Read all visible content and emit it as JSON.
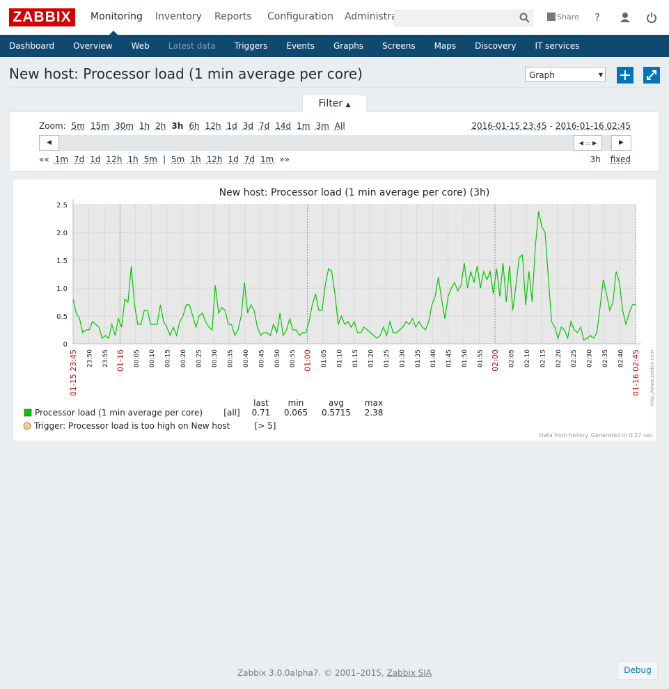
{
  "header": {
    "logo": "ZABBIX",
    "nav": [
      "Monitoring",
      "Inventory",
      "Reports",
      "Configuration",
      "Administrat"
    ],
    "share": "Share",
    "help": "?"
  },
  "subnav": [
    "Dashboard",
    "Overview",
    "Web",
    "Latest data",
    "Triggers",
    "Events",
    "Graphs",
    "Screens",
    "Maps",
    "Discovery",
    "IT services"
  ],
  "page": {
    "title": "New host: Processor load (1 min average per core)",
    "view": "Graph"
  },
  "filter": {
    "tab": "Filter",
    "zoom_label": "Zoom:",
    "zoom": [
      "5m",
      "15m",
      "30m",
      "1h",
      "2h",
      "3h",
      "6h",
      "12h",
      "1d",
      "3d",
      "7d",
      "14d",
      "1m",
      "3m",
      "All"
    ],
    "period_from": "2016-01-15 23:45",
    "separator": "-",
    "period_to": "2016-01-16 02:45",
    "nav_left": [
      "««",
      "1m",
      "7d",
      "1d",
      "12h",
      "1h",
      "5m"
    ],
    "divider": "|",
    "nav_right": [
      "5m",
      "1h",
      "12h",
      "1d",
      "7d",
      "1m",
      "»»"
    ],
    "period": "3h",
    "fixed": "fixed"
  },
  "graph": {
    "type": "line",
    "title": "New host: Processor load (1 min average per core) (3h)",
    "x_labels": [
      "01-15 23:45",
      "23:50",
      "23:55",
      "01-16",
      "00:05",
      "00:10",
      "00:15",
      "00:20",
      "00:25",
      "00:30",
      "00:35",
      "00:40",
      "00:45",
      "00:50",
      "00:55",
      "01:00",
      "01:05",
      "01:10",
      "01:15",
      "01:20",
      "01:25",
      "01:30",
      "01:35",
      "01:40",
      "01:45",
      "01:50",
      "01:55",
      "02:00",
      "02:05",
      "02:10",
      "02:15",
      "02:20",
      "02:25",
      "02:30",
      "02:35",
      "02:40",
      "01-16 02:45"
    ],
    "ylim": [
      0,
      2.5
    ],
    "yticks": [
      0,
      0.5,
      {
        "value": 1,
        "label": "1.0"
      },
      1.5,
      {
        "value": 2,
        "label": "2.0"
      },
      2.5
    ],
    "grid": true,
    "series": [
      {
        "name": "Processor load (1 min average per core)",
        "color": "#00c800",
        "values": [
          0.8,
          0.55,
          0.45,
          0.2,
          0.25,
          0.25,
          0.4,
          0.35,
          0.3,
          0.1,
          0.15,
          0.1,
          0.35,
          0.15,
          0.45,
          0.3,
          0.8,
          0.75,
          1.4,
          0.7,
          0.35,
          0.35,
          0.6,
          0.6,
          0.35,
          0.35,
          0.35,
          0.7,
          0.4,
          0.3,
          0.15,
          0.3,
          0.15,
          0.4,
          0.5,
          0.7,
          0.7,
          0.5,
          0.3,
          0.5,
          0.55,
          0.4,
          0.3,
          0.25,
          1.05,
          0.55,
          0.65,
          0.6,
          0.35,
          0.35,
          0.15,
          0.25,
          0.5,
          1.1,
          0.55,
          0.7,
          0.6,
          0.3,
          0.15,
          0.2,
          0.2,
          0.15,
          0.35,
          0.2,
          0.55,
          0.15,
          0.25,
          0.45,
          0.25,
          0.25,
          0.15,
          0.2,
          0.2,
          0.4,
          0.7,
          0.9,
          0.6,
          0.6,
          1.05,
          1.35,
          1.3,
          0.9,
          0.35,
          0.5,
          0.35,
          0.4,
          0.3,
          0.4,
          0.2,
          0.2,
          0.3,
          0.25,
          0.2,
          0.15,
          0.1,
          0.15,
          0.3,
          0.15,
          0.4,
          0.2,
          0.2,
          0.25,
          0.3,
          0.4,
          0.35,
          0.45,
          0.3,
          0.4,
          0.3,
          0.25,
          0.4,
          0.7,
          0.85,
          1.2,
          0.8,
          0.45,
          0.85,
          1.0,
          1.1,
          0.95,
          1.05,
          1.45,
          1.0,
          1.3,
          1.1,
          1.4,
          1.0,
          1.3,
          1.15,
          1.3,
          0.9,
          1.35,
          0.85,
          1.45,
          0.75,
          1.4,
          0.6,
          1.05,
          1.55,
          1.6,
          0.7,
          1.3,
          0.75,
          1.75,
          2.38,
          2.1,
          2.0,
          1.2,
          0.4,
          0.3,
          0.1,
          0.3,
          0.25,
          0.1,
          0.4,
          0.25,
          0.2,
          0.3,
          0.065,
          0.1,
          0.15,
          0.1,
          0.2,
          0.65,
          1.15,
          0.9,
          0.6,
          0.75,
          1.3,
          1.1,
          0.6,
          0.35,
          0.55,
          0.7,
          0.71
        ]
      }
    ],
    "legend": {
      "columns": [
        "last",
        "min",
        "avg",
        "max"
      ],
      "function": "[all]",
      "last": 0.71,
      "min": 0.065,
      "avg": 0.5715,
      "max": 2.38,
      "trigger": "Trigger: Processor load is too high on New host",
      "trigger_color": "#ffcc88",
      "trigger_value": "[> 5]"
    },
    "watermark": "http://www.zabbix.com",
    "footnote": "Data from history. Generated in 0.27 sec."
  },
  "footer": {
    "text": "Zabbix 3.0.0alpha7. © 2001–2015,",
    "link": "Zabbix SIA",
    "debug": "Debug"
  }
}
